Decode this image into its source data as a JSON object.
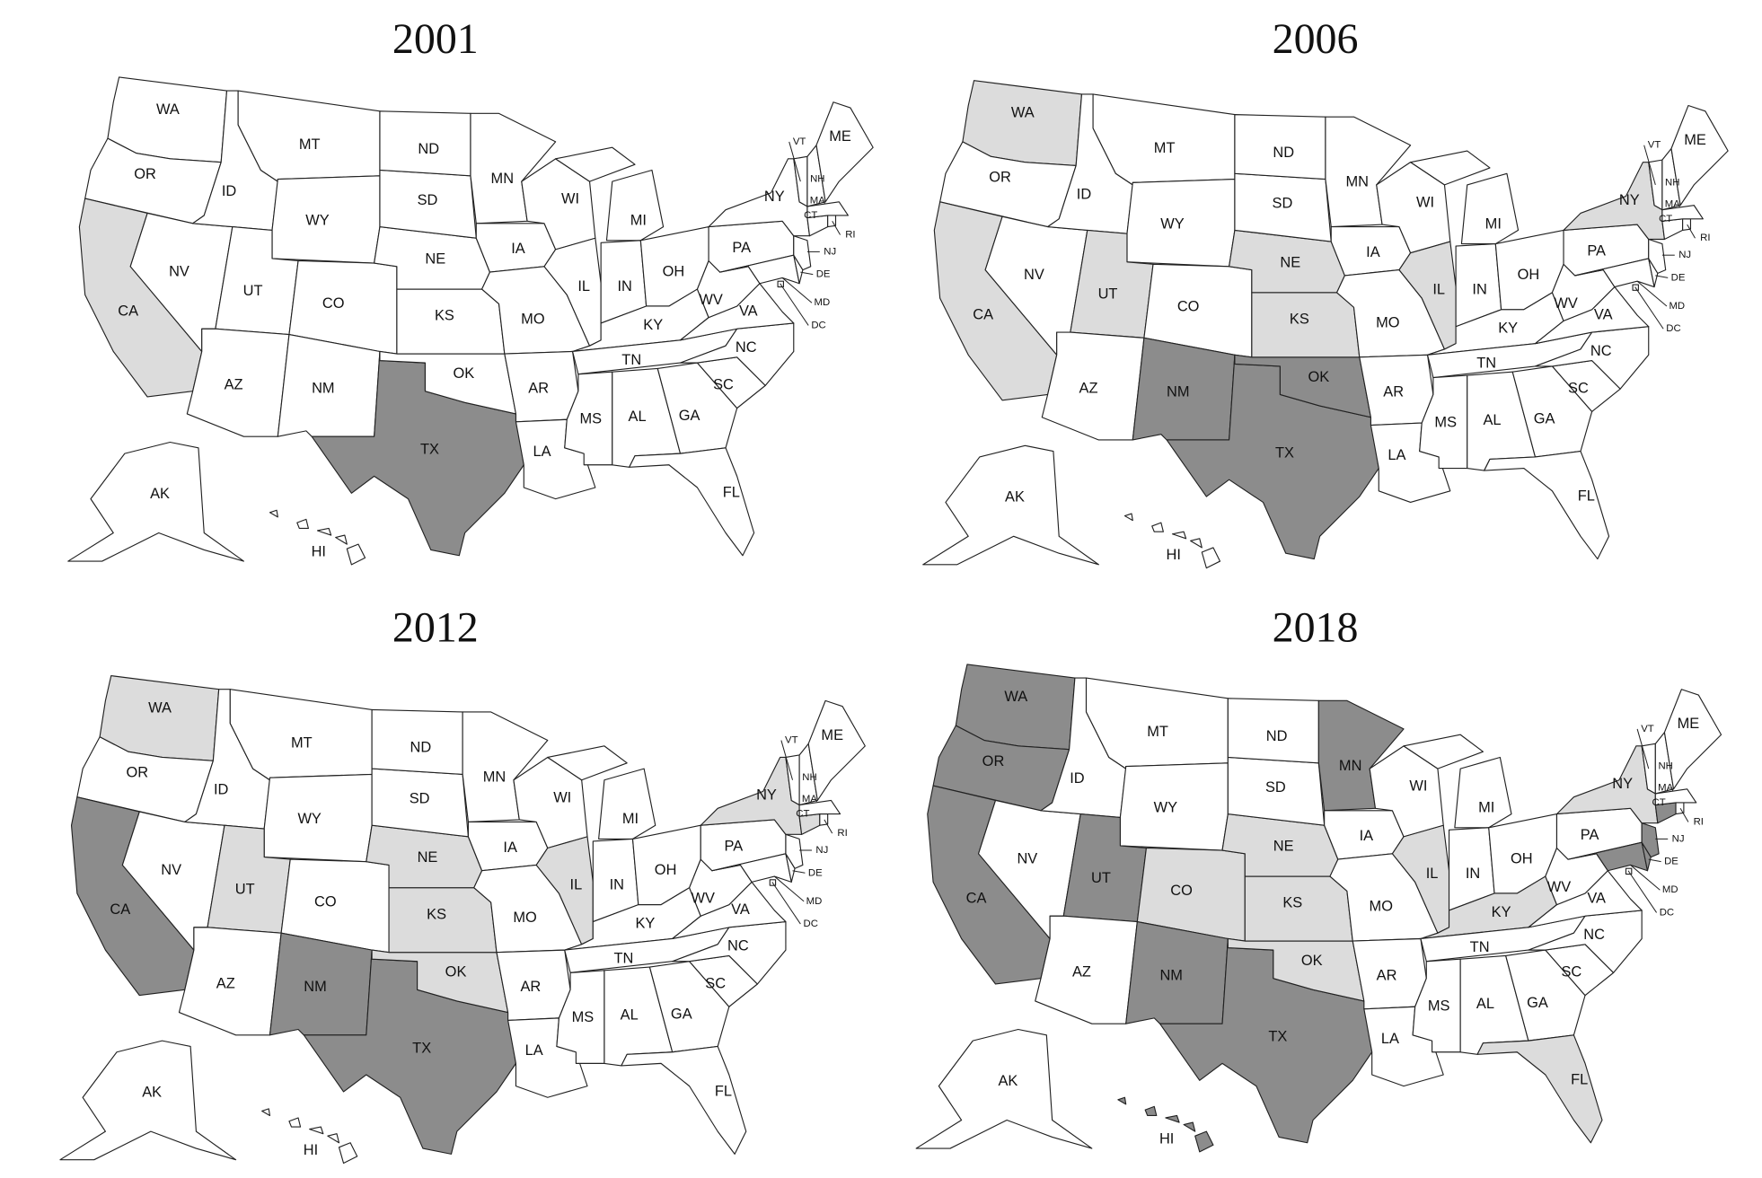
{
  "maps": [
    {
      "title": "2001",
      "dark": [
        "TX"
      ],
      "light": [
        "CA"
      ]
    },
    {
      "title": "2006",
      "dark": [
        "NM",
        "TX",
        "OK"
      ],
      "light": [
        "WA",
        "CA",
        "UT",
        "NE",
        "KS",
        "IL",
        "NY"
      ]
    },
    {
      "title": "2012",
      "dark": [
        "CA",
        "NM",
        "TX"
      ],
      "light": [
        "WA",
        "UT",
        "NE",
        "KS",
        "OK",
        "IL",
        "NY",
        "CT"
      ]
    },
    {
      "title": "2018",
      "dark": [
        "WA",
        "OR",
        "CA",
        "UT",
        "NM",
        "TX",
        "MN",
        "NJ",
        "MD",
        "DE",
        "CT",
        "HI"
      ],
      "light": [
        "CO",
        "NE",
        "KS",
        "OK",
        "IL",
        "KY",
        "NY",
        "FL"
      ]
    }
  ],
  "state_labels": [
    "WA",
    "OR",
    "CA",
    "NV",
    "ID",
    "MT",
    "WY",
    "UT",
    "CO",
    "AZ",
    "NM",
    "TX",
    "OK",
    "KS",
    "NE",
    "SD",
    "ND",
    "MN",
    "IA",
    "MO",
    "AR",
    "LA",
    "WI",
    "IL",
    "MI",
    "IN",
    "OH",
    "KY",
    "TN",
    "MS",
    "AL",
    "GA",
    "FL",
    "SC",
    "NC",
    "VA",
    "WV",
    "PA",
    "NY",
    "MD",
    "DE",
    "NJ",
    "CT",
    "RI",
    "MA",
    "VT",
    "NH",
    "ME",
    "AK",
    "HI",
    "DC"
  ],
  "colors": {
    "dark": "#8c8c8c",
    "light": "#dcdcdc",
    "none": "#ffffff"
  }
}
